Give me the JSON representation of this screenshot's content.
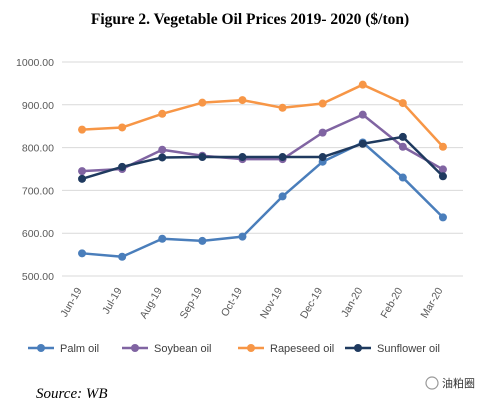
{
  "chart_data": {
    "type": "line",
    "title": "Figure 2. Vegetable Oil Prices 2019- 2020 ($/ton)",
    "categories": [
      "Jun-19",
      "Jul-19",
      "Aug-19",
      "Sep-19",
      "Oct-19",
      "Nov-19",
      "Dec-19",
      "Jan-20",
      "Feb-20",
      "Mar-20"
    ],
    "ylim": [
      500,
      1000
    ],
    "yticks": [
      "500.00",
      "600.00",
      "700.00",
      "800.00",
      "900.00",
      "1000.00"
    ],
    "grid": true,
    "legend_position": "bottom",
    "series": [
      {
        "name": "Palm oil",
        "color": "#4a7ebb",
        "values": [
          553,
          545,
          587,
          582,
          592,
          686,
          767,
          812,
          730,
          637
        ]
      },
      {
        "name": "Soybean oil",
        "color": "#8064a2",
        "values": [
          745,
          750,
          795,
          781,
          773,
          773,
          835,
          877,
          802,
          749
        ]
      },
      {
        "name": "Rapeseed oil",
        "color": "#f79646",
        "values": [
          842,
          847,
          879,
          905,
          911,
          893,
          903,
          947,
          904,
          802
        ]
      },
      {
        "name": "Sunflower oil",
        "color": "#1f3a5f",
        "values": [
          727,
          755,
          777,
          778,
          778,
          778,
          778,
          809,
          825,
          733
        ]
      }
    ]
  },
  "source": "Source: WB",
  "watermark": "油粕圈"
}
